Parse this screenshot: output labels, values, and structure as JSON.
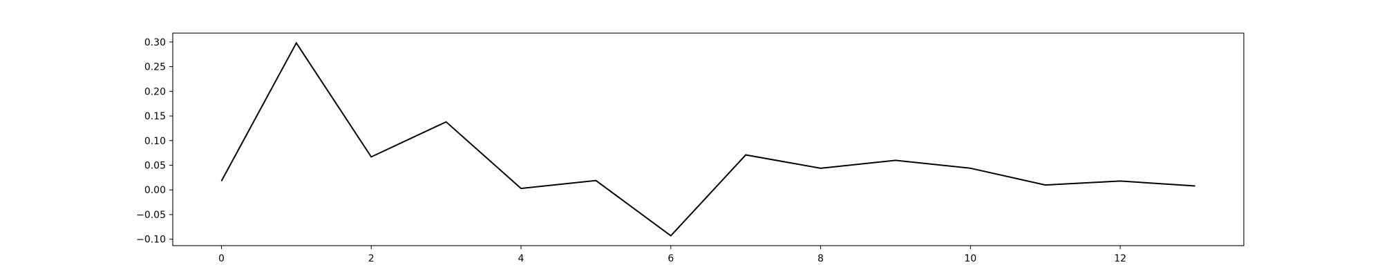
{
  "chart_data": {
    "type": "line",
    "title": "",
    "xlabel": "",
    "ylabel": "",
    "x": [
      0,
      1,
      2,
      3,
      4,
      5,
      6,
      7,
      8,
      9,
      10,
      11,
      12,
      13
    ],
    "series": [
      {
        "values": [
          0.018,
          0.298,
          0.067,
          0.138,
          0.003,
          0.019,
          -0.093,
          0.071,
          0.044,
          0.06,
          0.044,
          0.01,
          0.018,
          0.008
        ],
        "color": "#000000"
      }
    ],
    "xlim": [
      -0.65,
      13.65
    ],
    "ylim": [
      -0.113,
      0.318
    ],
    "xticks": [
      0,
      2,
      4,
      6,
      8,
      10,
      12
    ],
    "xtick_labels": [
      "0",
      "2",
      "4",
      "6",
      "8",
      "10",
      "12"
    ],
    "yticks": [
      -0.1,
      -0.05,
      0.0,
      0.05,
      0.1,
      0.15,
      0.2,
      0.25,
      0.3
    ],
    "ytick_labels": [
      "−0.10",
      "−0.05",
      "0.00",
      "0.05",
      "0.10",
      "0.15",
      "0.20",
      "0.25",
      "0.30"
    ],
    "grid": false,
    "legend": "none"
  }
}
